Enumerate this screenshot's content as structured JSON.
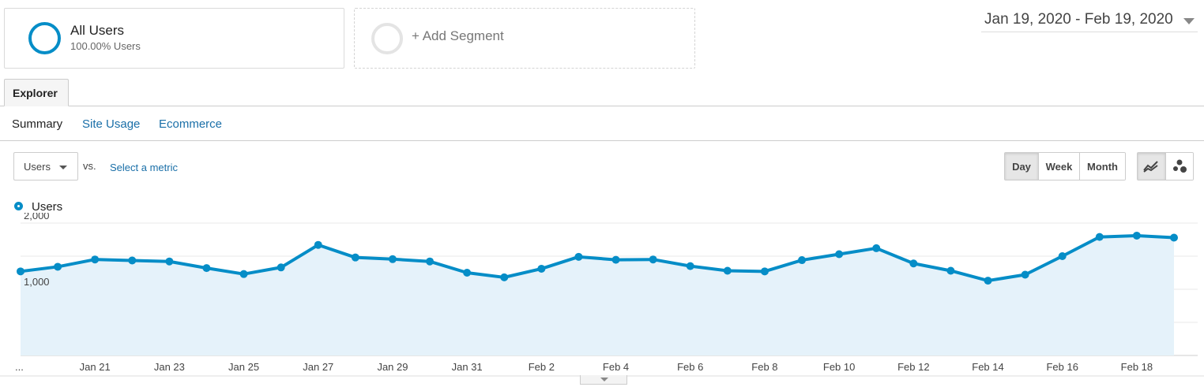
{
  "segments": {
    "active": {
      "name": "All Users",
      "sub": "100.00% Users"
    },
    "add_label": "+ Add Segment"
  },
  "date_range": "Jan 19, 2020 - Feb 19, 2020",
  "tabs": {
    "main": "Explorer"
  },
  "subtabs": [
    "Summary",
    "Site Usage",
    "Ecommerce"
  ],
  "metric": {
    "selected": "Users",
    "vs": "vs.",
    "select_metric": "Select a metric"
  },
  "period": [
    "Day",
    "Week",
    "Month"
  ],
  "period_active": "Day",
  "colors": {
    "series": "#058dc7",
    "fill": "#e5f2fa"
  },
  "legend": "Users",
  "chart_data": {
    "type": "area",
    "series": [
      {
        "name": "Users",
        "values": [
          1270,
          1340,
          1450,
          1435,
          1420,
          1320,
          1230,
          1330,
          1670,
          1480,
          1455,
          1420,
          1250,
          1180,
          1310,
          1490,
          1445,
          1450,
          1350,
          1280,
          1270,
          1440,
          1530,
          1620,
          1390,
          1280,
          1130,
          1220,
          1500,
          1790,
          1810,
          1780
        ]
      }
    ],
    "x_tick_labels": [
      "...",
      "Jan 21",
      "Jan 23",
      "Jan 25",
      "Jan 27",
      "Jan 29",
      "Jan 31",
      "Feb 2",
      "Feb 4",
      "Feb 6",
      "Feb 8",
      "Feb 10",
      "Feb 12",
      "Feb 14",
      "Feb 16",
      "Feb 18"
    ],
    "y_tick_labels": [
      "2,000",
      "1,000"
    ],
    "ylim": [
      0,
      2000
    ],
    "grid": true,
    "legend_position": "top-left"
  }
}
